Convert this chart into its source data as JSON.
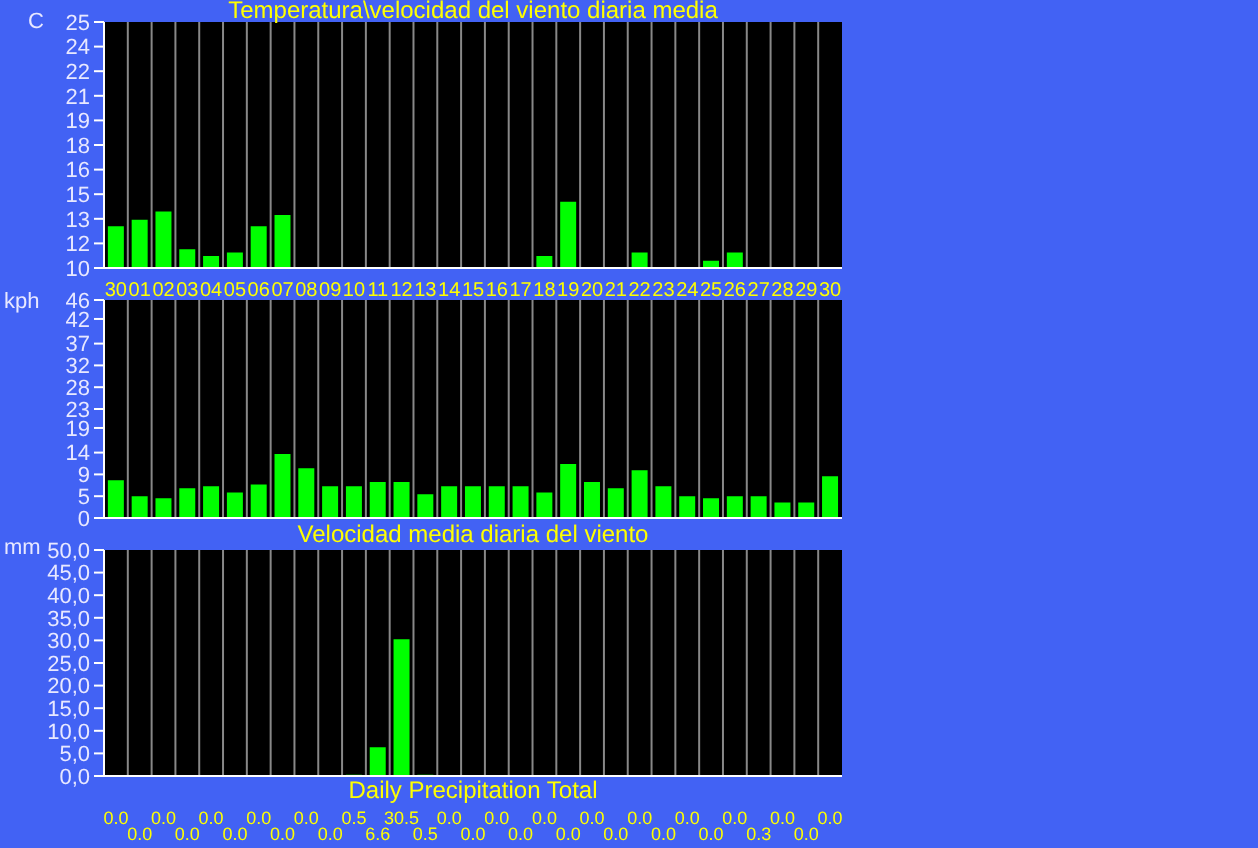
{
  "chart_data": [
    {
      "type": "bar",
      "title": "Temperatura\\velocidad del viento diaria media",
      "ylabel": "C",
      "color": "#00ff00",
      "grid": "x",
      "categories": [
        "30",
        "01",
        "02",
        "03",
        "04",
        "05",
        "06",
        "07",
        "08",
        "09",
        "10",
        "11",
        "12",
        "13",
        "14",
        "15",
        "16",
        "17",
        "18",
        "19",
        "20",
        "21",
        "22",
        "23",
        "24",
        "25",
        "26",
        "27",
        "28",
        "29",
        "30"
      ],
      "values": [
        12.6,
        13.0,
        13.5,
        11.2,
        10.8,
        11.0,
        12.6,
        13.3,
        null,
        null,
        null,
        null,
        null,
        null,
        null,
        null,
        null,
        null,
        10.8,
        14.1,
        null,
        null,
        11.0,
        null,
        null,
        10.5,
        11.0,
        null,
        null,
        null,
        null
      ],
      "ylim": [
        10,
        25
      ],
      "yticks": [
        10,
        {
          "value": 11.5,
          "label": "12"
        },
        13,
        {
          "value": 14.5,
          "label": "15"
        },
        16,
        {
          "value": 17.5,
          "label": "18"
        },
        19,
        {
          "value": 20.5,
          "label": "21"
        },
        22,
        {
          "value": 23.5,
          "label": "24"
        },
        25
      ]
    },
    {
      "type": "bar",
      "ylabel": "kph",
      "color": "#00ff00",
      "grid": "x",
      "tick_labels": "y",
      "categories": [
        "30",
        "01",
        "02",
        "03",
        "04",
        "05",
        "06",
        "07",
        "08",
        "09",
        "10",
        "11",
        "12",
        "13",
        "14",
        "15",
        "16",
        "17",
        "18",
        "19",
        "20",
        "21",
        "22",
        "23",
        "24",
        "25",
        "26",
        "27",
        "28",
        "29",
        "30"
      ],
      "values": [
        8.2,
        4.8,
        4.4,
        6.5,
        6.9,
        5.6,
        7.3,
        13.7,
        10.7,
        6.9,
        6.9,
        7.8,
        7.8,
        5.2,
        6.9,
        6.9,
        6.9,
        6.9,
        5.6,
        11.6,
        7.8,
        6.5,
        10.3,
        6.9,
        4.8,
        4.4,
        4.8,
        4.8,
        3.5,
        3.5,
        9.0
      ],
      "ylim": [
        0,
        46
      ],
      "yticks": [
        0,
        {
          "value": 4.6,
          "label": "5"
        },
        {
          "value": 9.2,
          "label": "9"
        },
        {
          "value": 13.8,
          "label": "14"
        },
        19,
        23,
        {
          "value": 27.6,
          "label": "28"
        },
        {
          "value": 32.2,
          "label": "32"
        },
        {
          "value": 36.8,
          "label": "37"
        },
        42,
        46
      ]
    },
    {
      "type": "bar",
      "title": "Velocidad media diaria del viento",
      "xlabel": "Daily Precipitation Total",
      "ylabel": "mm",
      "color": "#00ff00",
      "grid": "x",
      "tick_labels": "y",
      "categories": [
        "30",
        "01",
        "02",
        "03",
        "04",
        "05",
        "06",
        "07",
        "08",
        "09",
        "10",
        "11",
        "12",
        "13",
        "14",
        "15",
        "16",
        "17",
        "18",
        "19",
        "20",
        "21",
        "22",
        "23",
        "24",
        "25",
        "26",
        "27",
        "28",
        "29",
        "30"
      ],
      "values": [
        0,
        0,
        0,
        0,
        0,
        0,
        0,
        0,
        0,
        0,
        0.5,
        6.6,
        30.5,
        0.5,
        0,
        0,
        0,
        0,
        0,
        0,
        0,
        0,
        0,
        0,
        0,
        0,
        0,
        0.3,
        0,
        0,
        0
      ],
      "value_labels": [
        "0.0",
        "0.0",
        "0.0",
        "0.0",
        "0.0",
        "0.0",
        "0.0",
        "0.0",
        "0.0",
        "0.0",
        "0.5",
        "6.6",
        "30.5",
        "0.5",
        "0.0",
        "0.0",
        "0.0",
        "0.0",
        "0.0",
        "0.0",
        "0.0",
        "0.0",
        "0.0",
        "0.0",
        "0.0",
        "0.0",
        "0.0",
        "0.3",
        "0.0",
        "0.0",
        "0.0"
      ],
      "ylim": [
        0,
        50
      ],
      "yticks": [
        {
          "value": 0,
          "label": "0,0"
        },
        {
          "value": 5,
          "label": "5,0"
        },
        {
          "value": 10,
          "label": "10,0"
        },
        {
          "value": 15,
          "label": "15,0"
        },
        {
          "value": 20,
          "label": "20,0"
        },
        {
          "value": 25,
          "label": "25,0"
        },
        {
          "value": 30,
          "label": "30,0"
        },
        {
          "value": 35,
          "label": "35,0"
        },
        {
          "value": 40,
          "label": "40,0"
        },
        {
          "value": 45,
          "label": "45,0"
        },
        {
          "value": 50,
          "label": "50,0"
        }
      ]
    }
  ]
}
